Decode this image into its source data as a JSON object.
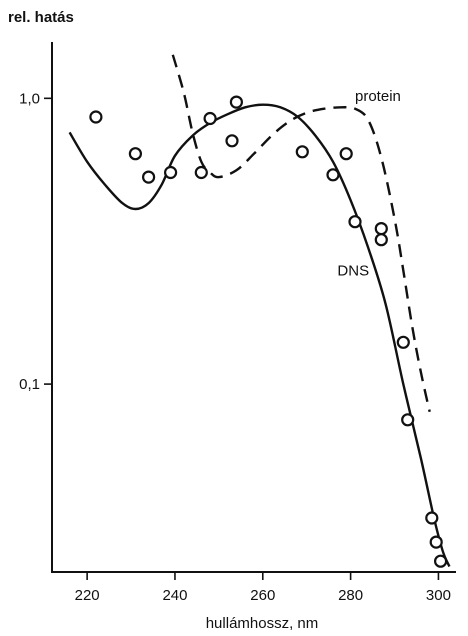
{
  "chart_data": {
    "type": "scatter",
    "ylabel": "rel. hatás",
    "xlabel": "hullámhossz, nm",
    "xlim": [
      212,
      304
    ],
    "yscale": "log",
    "ylim": [
      0.022,
      1.6
    ],
    "xticks": [
      220,
      240,
      260,
      280,
      300
    ],
    "yticks": [
      {
        "value": 1.0,
        "label": "1,0"
      },
      {
        "value": 0.1,
        "label": "0,1"
      }
    ],
    "grid": false,
    "annotations": [
      {
        "text": "protein",
        "x": 281,
        "y": 0.98
      },
      {
        "text": "DNS",
        "x": 277,
        "y": 0.24
      }
    ],
    "series": [
      {
        "name": "DNS",
        "style": "solid",
        "points": [
          [
            216,
            0.76
          ],
          [
            220,
            0.6
          ],
          [
            224,
            0.5
          ],
          [
            228,
            0.43
          ],
          [
            231,
            0.41
          ],
          [
            234,
            0.43
          ],
          [
            237,
            0.5
          ],
          [
            240,
            0.63
          ],
          [
            244,
            0.74
          ],
          [
            248,
            0.82
          ],
          [
            252,
            0.88
          ],
          [
            256,
            0.93
          ],
          [
            260,
            0.95
          ],
          [
            264,
            0.93
          ],
          [
            268,
            0.86
          ],
          [
            272,
            0.74
          ],
          [
            276,
            0.6
          ],
          [
            280,
            0.44
          ],
          [
            284,
            0.3
          ],
          [
            288,
            0.19
          ],
          [
            292,
            0.1
          ],
          [
            296,
            0.055
          ],
          [
            299,
            0.034
          ],
          [
            301,
            0.026
          ],
          [
            302.5,
            0.023
          ]
        ]
      },
      {
        "name": "protein",
        "style": "dashed",
        "points": [
          [
            239.5,
            1.42
          ],
          [
            242,
            1.05
          ],
          [
            244,
            0.76
          ],
          [
            246,
            0.6
          ],
          [
            248,
            0.55
          ],
          [
            250,
            0.53
          ],
          [
            254,
            0.56
          ],
          [
            258,
            0.64
          ],
          [
            262,
            0.74
          ],
          [
            266,
            0.83
          ],
          [
            270,
            0.89
          ],
          [
            274,
            0.92
          ],
          [
            278,
            0.93
          ],
          [
            281,
            0.92
          ],
          [
            284,
            0.84
          ],
          [
            287,
            0.62
          ],
          [
            290,
            0.38
          ],
          [
            292,
            0.25
          ],
          [
            294,
            0.16
          ],
          [
            296,
            0.11
          ],
          [
            298,
            0.08
          ]
        ]
      },
      {
        "name": "",
        "style": "markers",
        "points": [
          [
            222,
            0.86
          ],
          [
            231,
            0.64
          ],
          [
            234,
            0.53
          ],
          [
            239,
            0.55
          ],
          [
            246,
            0.55
          ],
          [
            248,
            0.85
          ],
          [
            253,
            0.71
          ],
          [
            254,
            0.97
          ],
          [
            269,
            0.65
          ],
          [
            276,
            0.54
          ],
          [
            279,
            0.64
          ],
          [
            281,
            0.37
          ],
          [
            287,
            0.35
          ],
          [
            287,
            0.32
          ],
          [
            292,
            0.14
          ],
          [
            293,
            0.075
          ],
          [
            298.5,
            0.034
          ],
          [
            299.5,
            0.028
          ],
          [
            300.5,
            0.024
          ]
        ]
      }
    ]
  }
}
